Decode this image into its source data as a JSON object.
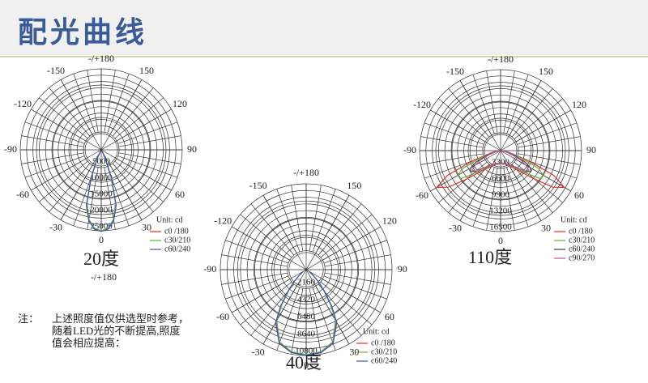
{
  "header": {
    "title": "配光曲线"
  },
  "note": {
    "lines": [
      "注：",
      "上述照度值仅供选型时参考，",
      "随着LED光的不断提高,照度",
      "值会相应提高："
    ]
  },
  "extra_label": "-/+180",
  "chart_data": [
    {
      "type": "polar",
      "caption": "20度",
      "unit": "Unit: cd",
      "rlim": [
        0,
        25000
      ],
      "rticks": [
        5000,
        10000,
        15000,
        20000,
        25000
      ],
      "thetaticks": [
        0,
        30,
        60,
        90,
        120,
        150,
        {
          "value": 180,
          "label": "-/+180"
        },
        -150,
        -120,
        -90,
        -60,
        -30
      ],
      "x": [
        -30,
        -25,
        -20,
        -15,
        -10,
        -5,
        0,
        5,
        10,
        15,
        20,
        25,
        30
      ],
      "series": [
        {
          "name": "c0 /180",
          "color": "#e03030",
          "values": [
            500,
            3000,
            9000,
            17500,
            22000,
            24500,
            25200,
            24500,
            22000,
            17500,
            9000,
            3000,
            500
          ]
        },
        {
          "name": "c30/210",
          "color": "#60b040",
          "values": [
            500,
            2800,
            8800,
            17000,
            21800,
            24300,
            25000,
            24300,
            21800,
            17000,
            8800,
            2800,
            500
          ]
        },
        {
          "name": "c60/240",
          "color": "#4050c0",
          "values": [
            500,
            3100,
            9200,
            17800,
            22200,
            24600,
            25200,
            24600,
            22200,
            17800,
            9200,
            3100,
            500
          ]
        }
      ]
    },
    {
      "type": "polar",
      "caption": "40度",
      "unit": "Unit: cd",
      "rlim": [
        0,
        10800
      ],
      "rticks": [
        2160,
        4320,
        6480,
        8640,
        10800
      ],
      "thetaticks": [
        0,
        30,
        60,
        90,
        120,
        150,
        {
          "value": 180,
          "label": "-/+180"
        },
        -150,
        -120,
        -90,
        -60,
        -30
      ],
      "x": [
        -60,
        -50,
        -45,
        -40,
        -35,
        -30,
        -20,
        -10,
        0,
        10,
        20,
        30,
        35,
        40,
        45,
        50,
        60
      ],
      "series": [
        {
          "name": "c0 /180",
          "color": "#e03030",
          "values": [
            400,
            1200,
            2200,
            3500,
            5500,
            7600,
            9800,
            10600,
            10800,
            10600,
            9800,
            7600,
            5500,
            3500,
            2200,
            1200,
            400
          ]
        },
        {
          "name": "c30/210",
          "color": "#60b040",
          "values": [
            400,
            1150,
            2100,
            3400,
            5300,
            7400,
            9700,
            10500,
            10700,
            10500,
            9700,
            7400,
            5300,
            3400,
            2100,
            1150,
            400
          ]
        },
        {
          "name": "c60/240",
          "color": "#4050c0",
          "values": [
            450,
            1250,
            2300,
            3600,
            5600,
            7700,
            9900,
            10600,
            10800,
            10600,
            9900,
            7700,
            5600,
            3600,
            2300,
            1250,
            450
          ]
        }
      ]
    },
    {
      "type": "polar",
      "caption": "110度",
      "unit": "Unit: cd",
      "rlim": [
        0,
        16500
      ],
      "rticks": [
        3300,
        6600,
        9900,
        13200,
        16500
      ],
      "thetaticks": [
        0,
        30,
        60,
        90,
        120,
        150,
        {
          "value": 180,
          "label": "-/+180"
        },
        -150,
        -120,
        -90,
        -60,
        -30
      ],
      "x": [
        -90,
        -80,
        -70,
        -65,
        -60,
        -55,
        -50,
        -40,
        -20,
        0,
        20,
        40,
        50,
        55,
        60,
        65,
        70,
        80,
        90
      ],
      "series": [
        {
          "name": "c0 /180",
          "color": "#e03030",
          "values": [
            0,
            1500,
            6000,
            12000,
            15000,
            13000,
            9000,
            5000,
            3000,
            2500,
            3000,
            5000,
            9000,
            13000,
            15000,
            12000,
            6000,
            1500,
            0
          ]
        },
        {
          "name": "c30/210",
          "color": "#60b040",
          "values": [
            0,
            1200,
            4500,
            8500,
            10000,
            10000,
            7500,
            4500,
            2900,
            2500,
            2900,
            4500,
            7500,
            10000,
            10000,
            8500,
            4500,
            1200,
            0
          ]
        },
        {
          "name": "c60/240",
          "color": "#404040",
          "values": [
            0,
            900,
            3000,
            5500,
            7000,
            7500,
            6500,
            4200,
            2800,
            2500,
            2800,
            4200,
            6500,
            7500,
            7000,
            5500,
            3000,
            900,
            0
          ]
        },
        {
          "name": "c90/270",
          "color": "#c050a0",
          "values": [
            0,
            800,
            2500,
            4500,
            6000,
            7000,
            6500,
            4300,
            2800,
            2500,
            2800,
            4300,
            6500,
            7000,
            6000,
            4500,
            2500,
            800,
            0
          ]
        }
      ]
    }
  ]
}
